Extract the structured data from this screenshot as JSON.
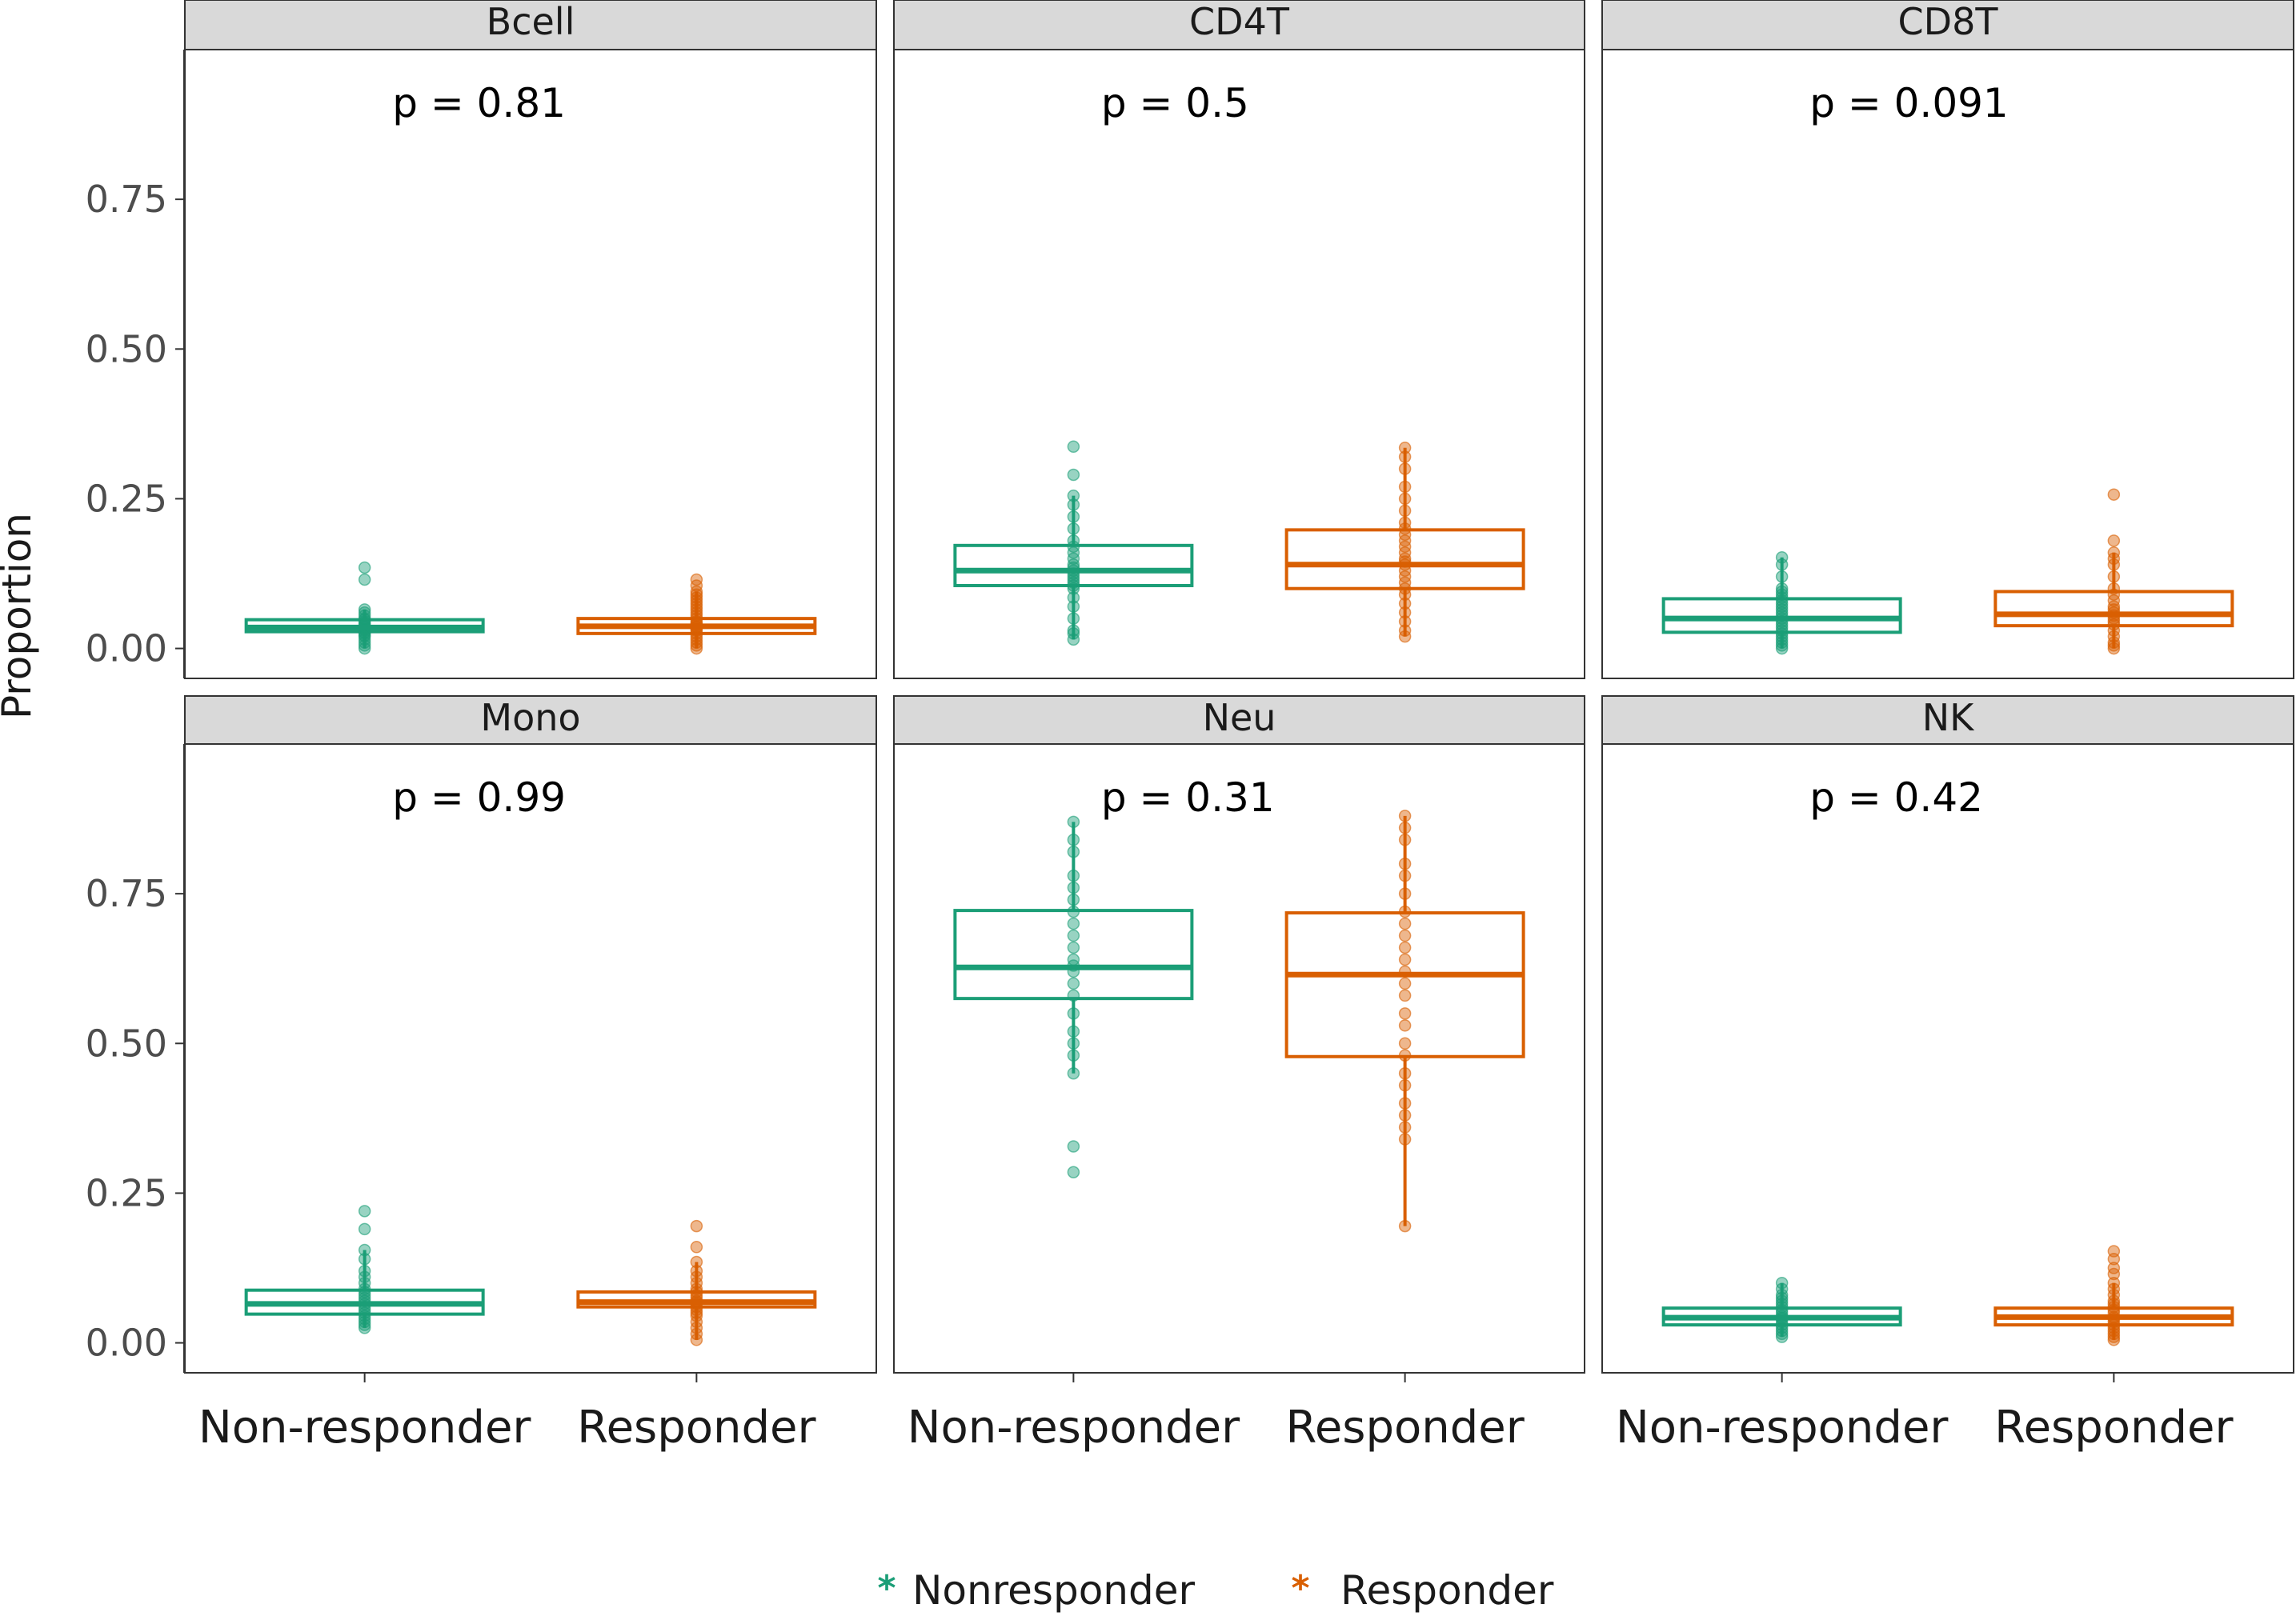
{
  "chart_data": {
    "type": "box",
    "ylabel": "Proportion",
    "xlabel": "",
    "ylim": [
      -0.05,
      1.0
    ],
    "yticks": [
      0,
      0.25,
      0.5,
      0.75
    ],
    "ytick_labels": [
      "0.00",
      "0.25",
      "0.50",
      "0.75"
    ],
    "categories": [
      "Non-responder",
      "Responder"
    ],
    "colors": {
      "Non-responder": "#1b9e77",
      "Responder": "#d95f02"
    },
    "legend": {
      "position": "bottom",
      "entries": [
        {
          "label": "Nonresponder",
          "color": "#1b9e77",
          "symbol": "*"
        },
        {
          "label": "Responder",
          "color": "#d95f02",
          "symbol": "*"
        }
      ]
    },
    "facets": [
      {
        "title": "Bcell",
        "p_label": "p = 0.81",
        "groups": [
          {
            "group": "Non-responder",
            "q1": 0.028,
            "median": 0.035,
            "q3": 0.048,
            "whisker_low": 0.0,
            "whisker_high": 0.065,
            "points": [
              0.0,
              0.005,
              0.01,
              0.015,
              0.02,
              0.022,
              0.025,
              0.027,
              0.03,
              0.032,
              0.035,
              0.037,
              0.04,
              0.042,
              0.045,
              0.048,
              0.05,
              0.055,
              0.06,
              0.065,
              0.115,
              0.135
            ]
          },
          {
            "group": "Responder",
            "q1": 0.025,
            "median": 0.037,
            "q3": 0.05,
            "whisker_low": 0.0,
            "whisker_high": 0.095,
            "points": [
              0.0,
              0.005,
              0.01,
              0.015,
              0.02,
              0.025,
              0.03,
              0.032,
              0.035,
              0.037,
              0.04,
              0.042,
              0.045,
              0.05,
              0.055,
              0.06,
              0.065,
              0.07,
              0.075,
              0.08,
              0.085,
              0.09,
              0.095,
              0.105,
              0.115
            ]
          }
        ]
      },
      {
        "title": "CD4T",
        "p_label": "p = 0.5",
        "groups": [
          {
            "group": "Non-responder",
            "q1": 0.105,
            "median": 0.13,
            "q3": 0.172,
            "whisker_low": 0.015,
            "whisker_high": 0.255,
            "points": [
              0.015,
              0.025,
              0.03,
              0.05,
              0.07,
              0.085,
              0.1,
              0.105,
              0.11,
              0.115,
              0.12,
              0.125,
              0.13,
              0.135,
              0.14,
              0.15,
              0.16,
              0.17,
              0.18,
              0.2,
              0.22,
              0.24,
              0.255,
              0.29,
              0.337
            ]
          },
          {
            "group": "Responder",
            "q1": 0.1,
            "median": 0.14,
            "q3": 0.198,
            "whisker_low": 0.02,
            "whisker_high": 0.335,
            "points": [
              0.02,
              0.03,
              0.045,
              0.06,
              0.075,
              0.09,
              0.1,
              0.11,
              0.12,
              0.13,
              0.14,
              0.145,
              0.15,
              0.16,
              0.17,
              0.18,
              0.19,
              0.2,
              0.21,
              0.23,
              0.25,
              0.27,
              0.3,
              0.32,
              0.335
            ]
          }
        ]
      },
      {
        "title": "CD8T",
        "p_label": "p = 0.091",
        "groups": [
          {
            "group": "Non-responder",
            "q1": 0.027,
            "median": 0.05,
            "q3": 0.083,
            "whisker_low": 0.0,
            "whisker_high": 0.152,
            "points": [
              0.0,
              0.005,
              0.01,
              0.015,
              0.02,
              0.025,
              0.03,
              0.035,
              0.04,
              0.045,
              0.05,
              0.055,
              0.06,
              0.065,
              0.07,
              0.075,
              0.08,
              0.085,
              0.09,
              0.095,
              0.1,
              0.12,
              0.14,
              0.152
            ]
          },
          {
            "group": "Responder",
            "q1": 0.038,
            "median": 0.057,
            "q3": 0.095,
            "whisker_low": 0.0,
            "whisker_high": 0.16,
            "points": [
              0.0,
              0.005,
              0.01,
              0.02,
              0.03,
              0.04,
              0.045,
              0.05,
              0.055,
              0.06,
              0.065,
              0.07,
              0.08,
              0.09,
              0.1,
              0.12,
              0.14,
              0.15,
              0.16,
              0.18,
              0.257
            ]
          }
        ]
      },
      {
        "title": "Mono",
        "p_label": "p = 0.99",
        "groups": [
          {
            "group": "Non-responder",
            "q1": 0.048,
            "median": 0.065,
            "q3": 0.088,
            "whisker_low": 0.025,
            "whisker_high": 0.155,
            "points": [
              0.025,
              0.03,
              0.035,
              0.04,
              0.045,
              0.05,
              0.055,
              0.06,
              0.065,
              0.07,
              0.075,
              0.08,
              0.085,
              0.09,
              0.1,
              0.11,
              0.12,
              0.14,
              0.155,
              0.19,
              0.22
            ]
          },
          {
            "group": "Responder",
            "q1": 0.06,
            "median": 0.068,
            "q3": 0.085,
            "whisker_low": 0.005,
            "whisker_high": 0.135,
            "points": [
              0.005,
              0.015,
              0.025,
              0.035,
              0.045,
              0.05,
              0.055,
              0.06,
              0.065,
              0.068,
              0.07,
              0.075,
              0.08,
              0.085,
              0.09,
              0.1,
              0.11,
              0.12,
              0.135,
              0.16,
              0.195
            ]
          }
        ]
      },
      {
        "title": "Neu",
        "p_label": "p = 0.31",
        "groups": [
          {
            "group": "Non-responder",
            "q1": 0.575,
            "median": 0.627,
            "q3": 0.722,
            "whisker_low": 0.45,
            "whisker_high": 0.87,
            "points": [
              0.285,
              0.328,
              0.45,
              0.48,
              0.5,
              0.52,
              0.55,
              0.58,
              0.6,
              0.62,
              0.63,
              0.64,
              0.66,
              0.68,
              0.7,
              0.72,
              0.74,
              0.76,
              0.78,
              0.82,
              0.84,
              0.87
            ]
          },
          {
            "group": "Responder",
            "q1": 0.478,
            "median": 0.615,
            "q3": 0.718,
            "whisker_low": 0.195,
            "whisker_high": 0.88,
            "points": [
              0.195,
              0.34,
              0.36,
              0.38,
              0.4,
              0.43,
              0.45,
              0.48,
              0.5,
              0.53,
              0.55,
              0.58,
              0.6,
              0.62,
              0.64,
              0.66,
              0.68,
              0.7,
              0.72,
              0.75,
              0.78,
              0.8,
              0.84,
              0.86,
              0.88
            ]
          }
        ]
      },
      {
        "title": "NK",
        "p_label": "p = 0.42",
        "groups": [
          {
            "group": "Non-responder",
            "q1": 0.03,
            "median": 0.042,
            "q3": 0.058,
            "whisker_low": 0.01,
            "whisker_high": 0.1,
            "points": [
              0.01,
              0.015,
              0.02,
              0.025,
              0.03,
              0.035,
              0.04,
              0.042,
              0.045,
              0.05,
              0.055,
              0.06,
              0.065,
              0.07,
              0.075,
              0.08,
              0.09,
              0.1
            ]
          },
          {
            "group": "Responder",
            "q1": 0.03,
            "median": 0.043,
            "q3": 0.058,
            "whisker_low": 0.005,
            "whisker_high": 0.1,
            "points": [
              0.005,
              0.01,
              0.015,
              0.02,
              0.025,
              0.03,
              0.035,
              0.04,
              0.043,
              0.05,
              0.055,
              0.06,
              0.065,
              0.07,
              0.08,
              0.09,
              0.1,
              0.115,
              0.125,
              0.14,
              0.153
            ]
          }
        ]
      }
    ]
  }
}
